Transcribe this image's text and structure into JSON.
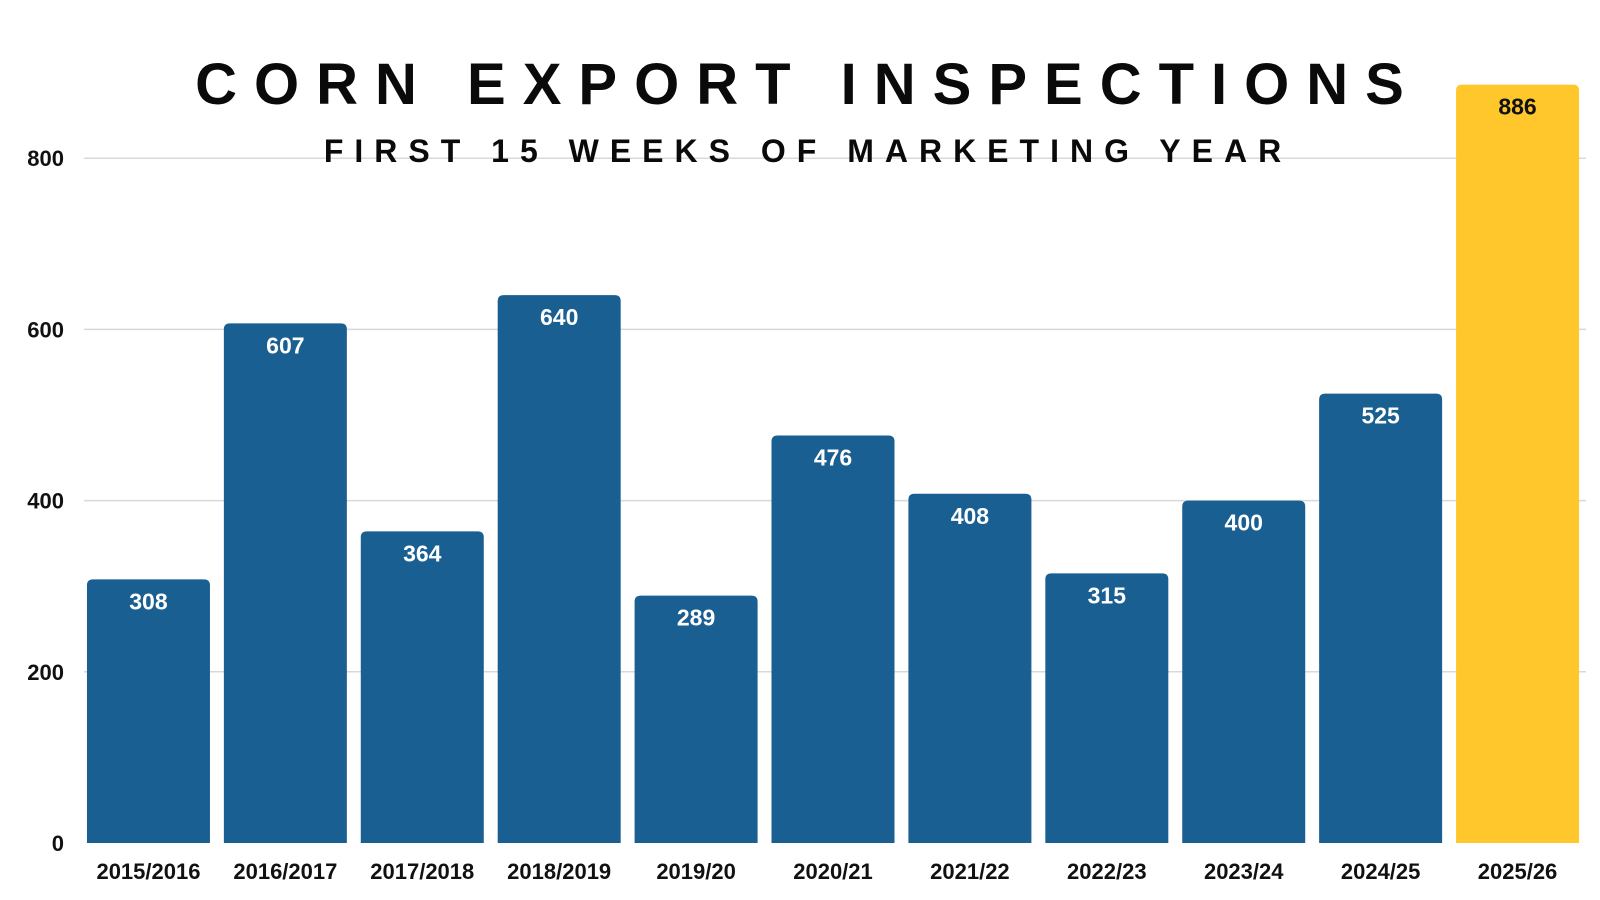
{
  "chart_data": {
    "type": "bar",
    "title": "CORN EXPORT INSPECTIONS",
    "subtitle": "FIRST 15 WEEKS OF MARKETING YEAR",
    "xlabel": "",
    "ylabel": "",
    "categories": [
      "2015/2016",
      "2016/2017",
      "2017/2018",
      "2018/2019",
      "2019/20",
      "2020/21",
      "2021/22",
      "2022/23",
      "2023/24",
      "2024/25",
      "2025/26"
    ],
    "values": [
      308,
      607,
      364,
      640,
      289,
      476,
      408,
      315,
      400,
      525,
      886
    ],
    "data_labels": [
      "308",
      "607",
      "364",
      "640",
      "289",
      "476",
      "408",
      "315",
      "400",
      "525",
      "886"
    ],
    "ylim": [
      0,
      886
    ],
    "yticks": [
      0,
      200,
      400,
      600,
      800
    ],
    "ytick_labels": [
      "0",
      "200",
      "400",
      "600",
      "800"
    ],
    "grid": true,
    "legend": "none",
    "bar_colors": [
      "#1a5f91",
      "#1a5f91",
      "#1a5f91",
      "#1a5f91",
      "#1a5f91",
      "#1a5f91",
      "#1a5f91",
      "#1a5f91",
      "#1a5f91",
      "#1a5f91",
      "#ffc72c"
    ],
    "label_colors": [
      "#ffffff",
      "#ffffff",
      "#ffffff",
      "#ffffff",
      "#ffffff",
      "#ffffff",
      "#ffffff",
      "#ffffff",
      "#ffffff",
      "#ffffff",
      "#111111"
    ]
  }
}
